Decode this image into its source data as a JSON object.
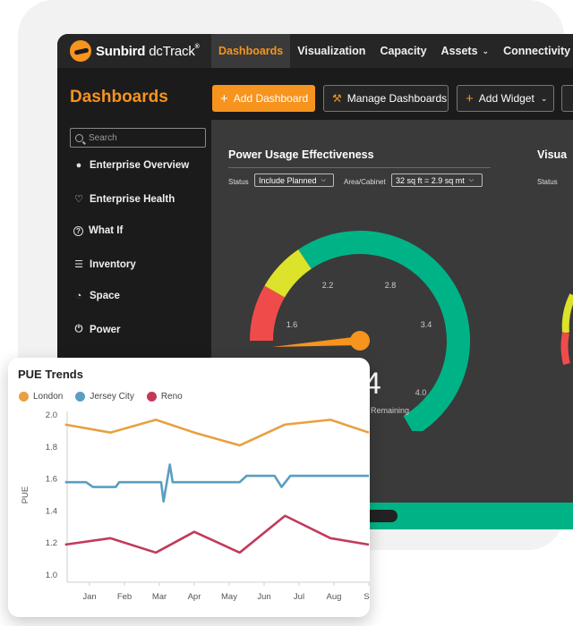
{
  "colors": {
    "brand_orange": "#f7941d",
    "gauge_green": "#00b386",
    "gauge_yellow": "#dde22a",
    "gauge_red": "#f04b4b",
    "london": "#e8a040",
    "jersey_city": "#5b9ec0",
    "reno": "#c23a5a"
  },
  "app": {
    "brand": "Sunbird",
    "product": "dcTrack",
    "reg_mark": "®",
    "nav": [
      {
        "label": "Dashboards",
        "chevron": ""
      },
      {
        "label": "Visualization",
        "chevron": ""
      },
      {
        "label": "Capacity",
        "chevron": ""
      },
      {
        "label": "Assets",
        "chevron": "⌄"
      },
      {
        "label": "Connectivity",
        "chevron": "⌄"
      },
      {
        "label": "C",
        "chevron": ""
      }
    ],
    "page_title": "Dashboards",
    "toolbar": {
      "add_dashboard": "Add Dashboard",
      "manage_dashboards": "Manage Dashboards",
      "add_widget": "Add Widget",
      "add_widget_chevron": "⌄",
      "plus_icon": "+",
      "wrench_icon": "🔧"
    }
  },
  "sidebar": {
    "search_placeholder": "Search",
    "items": [
      {
        "label": "Enterprise Overview",
        "icon": "globe-icon",
        "glyph": "🌐"
      },
      {
        "label": "Enterprise Health",
        "icon": "heart-pulse-icon",
        "glyph": "♡"
      },
      {
        "label": "What If",
        "icon": "question-icon",
        "glyph": "?"
      },
      {
        "label": "Inventory",
        "icon": "list-icon",
        "glyph": "☰"
      },
      {
        "label": "Space",
        "icon": "speedometer-icon",
        "glyph": "◔"
      },
      {
        "label": "Power",
        "icon": "power-icon",
        "glyph": "⏻"
      }
    ]
  },
  "widget": {
    "title": "Power Usage Effectiveness",
    "status_label": "Status",
    "status_value": "Include Planned",
    "area_label": "Area/Cabinet",
    "area_value": "32 sq ft = 2.9 sq mt",
    "gauge": {
      "value": 1.4,
      "value_text": "1.4",
      "min": 1.0,
      "max": 4.0,
      "ticks": [
        "1.6",
        "2.2",
        "2.8",
        "3.4",
        "4.0"
      ],
      "caption": "s Remaining"
    },
    "second_title": "Visua",
    "second_status_label": "Status"
  },
  "trends": {
    "title": "PUE Trends",
    "legend": [
      "London",
      "Jersey City",
      "Reno"
    ]
  },
  "chart_data": {
    "type": "line",
    "title": "PUE Trends",
    "xlabel": "",
    "ylabel": "PUE",
    "ylim": [
      1.0,
      2.0
    ],
    "yticks": [
      "2.0",
      "1.8",
      "1.6",
      "1.4",
      "1.2",
      "1.0"
    ],
    "categories": [
      "Jan",
      "Feb",
      "Mar",
      "Apr",
      "May",
      "Jun",
      "Jul",
      "Aug",
      "Se"
    ],
    "x": [
      0,
      1,
      2,
      3,
      4,
      5,
      6,
      7,
      8
    ],
    "grid": false,
    "legend_position": "top-left",
    "series": [
      {
        "name": "London",
        "x": [
          -0.7,
          0.6,
          1.9,
          3.0,
          4.3,
          5.6,
          6.9,
          8.0
        ],
        "values": [
          1.94,
          1.89,
          1.97,
          1.89,
          1.81,
          1.94,
          1.97,
          1.89
        ]
      },
      {
        "name": "Jersey City",
        "x": [
          -0.7,
          -0.1,
          0.1,
          0.75,
          0.85,
          2.05,
          2.12,
          2.3,
          2.38,
          4.3,
          4.5,
          5.3,
          5.5,
          5.75,
          6.0,
          8.0
        ],
        "values": [
          1.58,
          1.58,
          1.55,
          1.55,
          1.58,
          1.58,
          1.46,
          1.69,
          1.58,
          1.58,
          1.62,
          1.62,
          1.55,
          1.62,
          1.62,
          1.62
        ]
      },
      {
        "name": "Reno",
        "x": [
          -0.7,
          0.6,
          1.9,
          3.0,
          4.3,
          5.6,
          6.9,
          8.0
        ],
        "values": [
          1.19,
          1.23,
          1.14,
          1.27,
          1.14,
          1.37,
          1.23,
          1.19
        ]
      }
    ]
  }
}
